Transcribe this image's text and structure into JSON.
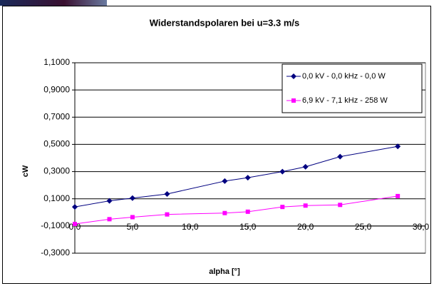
{
  "chart_data": {
    "type": "scatter",
    "title": "Widerstandspolaren bei u=3.3 m/s",
    "x_label": "alpha [°]",
    "y_label": "cW",
    "xlim": [
      0,
      30.4
    ],
    "ylim": [
      -0.3,
      1.1
    ],
    "xticks": [
      {
        "value": 0,
        "label": "0,0"
      },
      {
        "value": 5,
        "label": "5,0"
      },
      {
        "value": 10,
        "label": "10,0"
      },
      {
        "value": 15,
        "label": "15,0"
      },
      {
        "value": 20,
        "label": "20,0"
      },
      {
        "value": 25,
        "label": "25,0"
      },
      {
        "value": 30,
        "label": "30,0"
      }
    ],
    "yticks": [
      {
        "value": -0.3,
        "label": "-0,3000"
      },
      {
        "value": -0.1,
        "label": "-0,1000"
      },
      {
        "value": 0.1,
        "label": "0,1000"
      },
      {
        "value": 0.3,
        "label": "0,3000"
      },
      {
        "value": 0.5,
        "label": "0,5000"
      },
      {
        "value": 0.7,
        "label": "0,7000"
      },
      {
        "value": 0.9,
        "label": "0,9000"
      },
      {
        "value": 1.1,
        "label": "1,1000"
      }
    ],
    "grid": true,
    "legend": "upper right",
    "series": [
      {
        "name": "0,0 kV - 0,0 kHz - 0,0 W",
        "color": "#000080",
        "marker": "diamond",
        "x": [
          0,
          3,
          5,
          8,
          13,
          15,
          18,
          20,
          23,
          28
        ],
        "values": [
          0.04,
          0.085,
          0.105,
          0.135,
          0.23,
          0.255,
          0.3,
          0.335,
          0.41,
          0.485
        ]
      },
      {
        "name": "6,9 kV - 7,1 kHz - 258 W",
        "color": "#ff00ff",
        "marker": "square",
        "x": [
          0,
          3,
          5,
          8,
          13,
          15,
          18,
          20,
          23,
          28
        ],
        "values": [
          -0.085,
          -0.05,
          -0.035,
          -0.015,
          -0.005,
          0.005,
          0.04,
          0.05,
          0.055,
          0.12
        ]
      }
    ]
  }
}
